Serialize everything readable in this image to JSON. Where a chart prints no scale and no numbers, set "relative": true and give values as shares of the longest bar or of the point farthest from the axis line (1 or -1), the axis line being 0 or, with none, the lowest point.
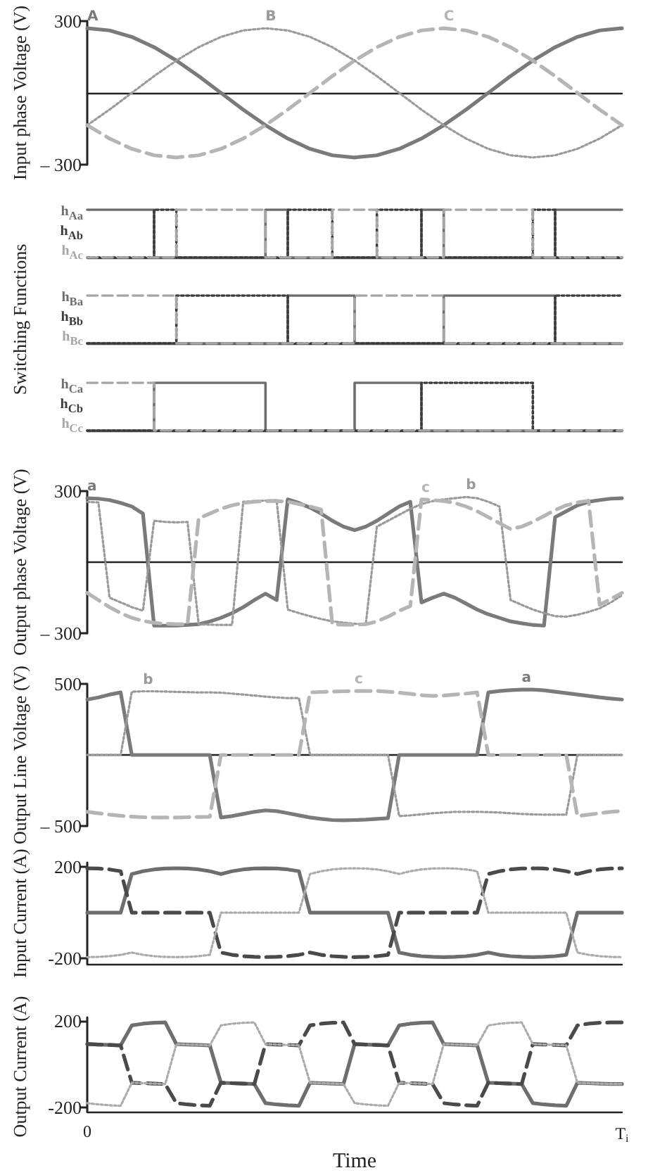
{
  "chart_data": [
    {
      "type": "line",
      "ylabel": "Input phase Voltage (V)",
      "ylim": [
        -300,
        300
      ],
      "yticks": [
        {
          "value": 300,
          "label": "300"
        },
        {
          "value": -300,
          "label": "– 300"
        }
      ],
      "tick_labels": "y",
      "marker": "none",
      "categories": [
        null,
        null,
        null,
        null,
        null,
        null,
        null,
        null,
        null,
        null,
        null,
        null,
        null,
        null,
        null,
        null,
        null,
        null,
        null,
        null,
        null,
        null,
        null,
        null,
        null
      ],
      "series": [
        {
          "name": "A",
          "color": "#7a7a7a",
          "line_style": "solid",
          "values": [
            270,
            261,
            234,
            191,
            135,
            70,
            0,
            -70,
            -135,
            -191,
            -234,
            -261,
            -270,
            -261,
            -234,
            -191,
            -135,
            -70,
            0,
            70,
            135,
            191,
            234,
            261,
            270
          ]
        },
        {
          "name": "B",
          "color": "#9a9a9a",
          "line_style": "dotted",
          "values": [
            -135,
            -70,
            0,
            70,
            135,
            191,
            234,
            261,
            270,
            261,
            234,
            191,
            135,
            70,
            0,
            -70,
            -135,
            -191,
            -234,
            -261,
            -270,
            -261,
            -234,
            -191,
            -135
          ]
        },
        {
          "name": "C",
          "color": "#b5b5b5",
          "line_style": "dashed",
          "values": [
            -135,
            -191,
            -234,
            -261,
            -270,
            -261,
            -234,
            -191,
            -135,
            -70,
            0,
            70,
            135,
            191,
            234,
            261,
            270,
            261,
            234,
            191,
            135,
            70,
            0,
            -70,
            -135
          ]
        }
      ]
    },
    {
      "type": "step",
      "relative": true,
      "tick_labels": false,
      "marker": "none",
      "categories": [
        null,
        null,
        null,
        null,
        null,
        null,
        null,
        null,
        null,
        null,
        null,
        null,
        null,
        null,
        null,
        null,
        null,
        null,
        null,
        null,
        null,
        null,
        null,
        null,
        null
      ],
      "series": [
        {
          "name": "h$_{Aa}$",
          "color": "#6e6e6e",
          "line_style": "solid",
          "values": [
            1,
            1,
            1,
            0,
            0,
            0,
            0,
            0,
            1,
            0,
            0,
            0,
            0,
            0,
            0,
            1,
            0,
            0,
            0,
            0,
            0,
            1,
            1,
            1,
            1
          ]
        },
        {
          "name": "h$_{Ab}$",
          "color": "#3c3c3c",
          "line_style": "dotted",
          "values": [
            0,
            0,
            0,
            1,
            0,
            0,
            0,
            0,
            0,
            1,
            1,
            0,
            0,
            1,
            1,
            0,
            0,
            0,
            0,
            0,
            1,
            0,
            0,
            0,
            0
          ]
        },
        {
          "name": "h$_{Ac}$",
          "color": "#a6a6a6",
          "line_style": "dashed",
          "values": [
            0,
            0,
            0,
            0,
            1,
            1,
            1,
            1,
            0,
            0,
            0,
            1,
            1,
            0,
            0,
            0,
            1,
            1,
            1,
            1,
            0,
            0,
            0,
            0,
            0
          ]
        }
      ]
    },
    {
      "type": "step",
      "relative": true,
      "ylabel": "Switching Functions",
      "tick_labels": false,
      "marker": "none",
      "categories": [
        null,
        null,
        null,
        null,
        null,
        null,
        null,
        null,
        null,
        null,
        null,
        null,
        null,
        null,
        null,
        null,
        null,
        null,
        null,
        null,
        null,
        null,
        null,
        null,
        null
      ],
      "series": [
        {
          "name": "h$_{Ba}$",
          "color": "#6e6e6e",
          "line_style": "solid",
          "values": [
            0,
            0,
            0,
            0,
            0,
            0,
            0,
            0,
            0,
            1,
            1,
            1,
            0,
            0,
            0,
            0,
            1,
            1,
            1,
            1,
            1,
            0,
            0,
            0,
            0
          ]
        },
        {
          "name": "h$_{Bb}$",
          "color": "#3c3c3c",
          "line_style": "dotted",
          "values": [
            0,
            0,
            0,
            0,
            1,
            1,
            1,
            1,
            1,
            0,
            0,
            0,
            0,
            0,
            0,
            0,
            0,
            0,
            0,
            0,
            0,
            1,
            1,
            1,
            1
          ]
        },
        {
          "name": "h$_{Bc}$",
          "color": "#a6a6a6",
          "line_style": "dashed",
          "values": [
            1,
            1,
            1,
            1,
            0,
            0,
            0,
            0,
            0,
            0,
            0,
            0,
            1,
            1,
            1,
            1,
            0,
            0,
            0,
            0,
            0,
            0,
            0,
            0,
            0
          ]
        }
      ]
    },
    {
      "type": "step",
      "relative": true,
      "tick_labels": false,
      "marker": "none",
      "categories": [
        null,
        null,
        null,
        null,
        null,
        null,
        null,
        null,
        null,
        null,
        null,
        null,
        null,
        null,
        null,
        null,
        null,
        null,
        null,
        null,
        null,
        null,
        null,
        null,
        null
      ],
      "series": [
        {
          "name": "h$_{Ca}$",
          "color": "#6e6e6e",
          "line_style": "solid",
          "values": [
            0,
            0,
            0,
            1,
            1,
            1,
            1,
            1,
            0,
            0,
            0,
            0,
            1,
            1,
            1,
            0,
            0,
            0,
            0,
            0,
            0,
            0,
            0,
            0,
            0
          ]
        },
        {
          "name": "h$_{Cb}$",
          "color": "#3c3c3c",
          "line_style": "dotted",
          "values": [
            0,
            0,
            0,
            0,
            0,
            0,
            0,
            0,
            0,
            0,
            0,
            0,
            0,
            0,
            0,
            1,
            1,
            1,
            1,
            1,
            0,
            0,
            0,
            0,
            0
          ]
        },
        {
          "name": "h$_{Cc}$",
          "color": "#a6a6a6",
          "line_style": "dashed",
          "values": [
            1,
            1,
            1,
            0,
            0,
            0,
            0,
            0,
            0,
            0,
            0,
            0,
            0,
            0,
            0,
            0,
            0,
            0,
            0,
            0,
            0,
            0,
            0,
            0,
            0
          ]
        }
      ]
    },
    {
      "type": "line",
      "ylabel": "Output phase Voltage (V)",
      "ylim": [
        -300,
        300
      ],
      "yticks": [
        {
          "value": 300,
          "label": "300"
        },
        {
          "value": -300,
          "label": "– 300"
        }
      ],
      "tick_labels": "y",
      "marker": "none",
      "categories": [
        null,
        null,
        null,
        null,
        null,
        null,
        null,
        null,
        null,
        null,
        null,
        null,
        null,
        null,
        null,
        null,
        null,
        null,
        null,
        null,
        null,
        null,
        null,
        null,
        null,
        null,
        null,
        null,
        null,
        null,
        null,
        null,
        null,
        null,
        null,
        null,
        null,
        null,
        null,
        null,
        null,
        null,
        null,
        null,
        null,
        null,
        null,
        null,
        null
      ],
      "series": [
        {
          "name": "a",
          "color": "#7a7a7a",
          "line_style": "solid",
          "values": [
            270,
            268,
            262,
            250,
            235,
            205,
            -268,
            -268,
            -268,
            -265,
            -262,
            -250,
            -235,
            -215,
            -190,
            -160,
            -133,
            -160,
            265,
            250,
            230,
            205,
            175,
            150,
            135,
            150,
            175,
            205,
            235,
            255,
            -170,
            -150,
            -133,
            -150,
            -175,
            -200,
            -220,
            -235,
            -250,
            -258,
            -265,
            -268,
            190,
            215,
            240,
            255,
            262,
            268,
            270
          ]
        },
        {
          "name": "b",
          "color": "#9a9a9a",
          "line_style": "dotted",
          "values": [
            255,
            252,
            -150,
            -170,
            -190,
            -205,
            175,
            170,
            168,
            170,
            -262,
            -264,
            -265,
            -265,
            255,
            258,
            260,
            262,
            -200,
            -215,
            -228,
            -240,
            -250,
            -255,
            -260,
            -263,
            150,
            175,
            200,
            225,
            245,
            258,
            265,
            270,
            275,
            270,
            255,
            235,
            -160,
            -180,
            -200,
            -215,
            -228,
            -230,
            -222,
            -210,
            -195,
            -170,
            -140
          ]
        },
        {
          "name": "c",
          "color": "#b5b5b5",
          "line_style": "dashed",
          "values": [
            -130,
            -160,
            -190,
            -215,
            -235,
            -248,
            -256,
            -260,
            -262,
            -262,
            185,
            205,
            225,
            240,
            250,
            255,
            258,
            258,
            255,
            245,
            235,
            222,
            -262,
            -264,
            -264,
            -262,
            -250,
            -230,
            -205,
            -185,
            265,
            262,
            258,
            250,
            235,
            215,
            190,
            165,
            140,
            150,
            170,
            195,
            220,
            240,
            252,
            260,
            -180,
            -155,
            -130
          ]
        }
      ]
    },
    {
      "type": "line",
      "ylabel": "Output Line Voltage (V)",
      "ylim": [
        -500,
        500
      ],
      "yticks": [
        {
          "value": 500,
          "label": "500"
        },
        {
          "value": -500,
          "label": "– 500"
        }
      ],
      "tick_labels": "y",
      "marker": "none",
      "categories": [
        null,
        null,
        null,
        null,
        null,
        null,
        null,
        null,
        null,
        null,
        null,
        null,
        null,
        null,
        null,
        null,
        null,
        null,
        null,
        null,
        null,
        null,
        null,
        null,
        null,
        null,
        null,
        null,
        null,
        null,
        null,
        null,
        null,
        null,
        null,
        null,
        null,
        null,
        null,
        null,
        null,
        null,
        null,
        null,
        null,
        null,
        null,
        null,
        null
      ],
      "series": [
        {
          "name": "a",
          "color": "#7a7a7a",
          "line_style": "solid",
          "values": [
            390,
            405,
            425,
            440,
            0,
            0,
            0,
            0,
            0,
            0,
            0,
            0,
            -440,
            -430,
            -415,
            -400,
            -390,
            -395,
            -410,
            -425,
            -440,
            -450,
            -458,
            -460,
            -458,
            -455,
            -450,
            -445,
            0,
            0,
            0,
            0,
            0,
            0,
            0,
            0,
            440,
            450,
            456,
            460,
            460,
            455,
            445,
            435,
            425,
            415,
            405,
            397,
            390
          ]
        },
        {
          "name": "b",
          "color": "#9a9a9a",
          "line_style": "dotted",
          "values": [
            0,
            0,
            0,
            0,
            445,
            448,
            448,
            446,
            444,
            442,
            440,
            440,
            438,
            432,
            425,
            418,
            410,
            405,
            400,
            400,
            0,
            0,
            0,
            0,
            0,
            0,
            0,
            0,
            -430,
            -425,
            -418,
            -410,
            -405,
            -400,
            -400,
            -400,
            -402,
            -405,
            -410,
            -415,
            -418,
            -420,
            -420,
            -420,
            0,
            0,
            0,
            0,
            0
          ]
        },
        {
          "name": "c",
          "color": "#b5b5b5",
          "line_style": "dashed",
          "values": [
            -400,
            -410,
            -420,
            -428,
            -434,
            -438,
            -440,
            -440,
            -440,
            -438,
            -436,
            -435,
            0,
            0,
            0,
            0,
            0,
            0,
            0,
            0,
            440,
            443,
            446,
            448,
            450,
            450,
            450,
            445,
            438,
            430,
            420,
            415,
            418,
            425,
            432,
            440,
            0,
            0,
            0,
            0,
            0,
            0,
            0,
            0,
            -430,
            -420,
            -410,
            -400,
            -395
          ]
        }
      ]
    },
    {
      "type": "line",
      "ylabel": "Input Current (A)",
      "ylim": [
        -225,
        220
      ],
      "yticks": [
        {
          "value": 200,
          "label": "200"
        },
        {
          "value": -200,
          "label": "-200"
        }
      ],
      "tick_labels": "y",
      "marker": "none",
      "categories": [
        null,
        null,
        null,
        null,
        null,
        null,
        null,
        null,
        null,
        null,
        null,
        null,
        null,
        null,
        null,
        null,
        null,
        null,
        null,
        null,
        null,
        null,
        null,
        null,
        null,
        null,
        null,
        null,
        null,
        null,
        null,
        null,
        null,
        null,
        null,
        null,
        null,
        null,
        null,
        null,
        null,
        null,
        null,
        null,
        null,
        null,
        null,
        null,
        null
      ],
      "series": [
        {
          "color": "#6e6e6e",
          "line_style": "solid",
          "values": [
            0,
            0,
            0,
            0,
            170,
            182,
            190,
            194,
            195,
            194,
            190,
            182,
            170,
            182,
            190,
            194,
            195,
            194,
            190,
            182,
            0,
            0,
            0,
            0,
            0,
            0,
            0,
            0,
            -175,
            -185,
            -191,
            -194,
            -195,
            -194,
            -191,
            -185,
            -175,
            -185,
            -191,
            -194,
            -195,
            -194,
            -191,
            -185,
            0,
            0,
            0,
            0,
            0
          ]
        },
        {
          "color": "#4a4a4a",
          "line_style": "dashed",
          "values": [
            195,
            194,
            190,
            182,
            0,
            0,
            0,
            0,
            0,
            0,
            0,
            0,
            -175,
            -185,
            -191,
            -194,
            -195,
            -194,
            -191,
            -185,
            -175,
            -185,
            -191,
            -194,
            -195,
            -194,
            -191,
            -185,
            0,
            0,
            0,
            0,
            0,
            0,
            0,
            0,
            170,
            182,
            190,
            194,
            195,
            194,
            190,
            182,
            170,
            182,
            190,
            194,
            195
          ]
        },
        {
          "color": "#ababab",
          "line_style": "dotted",
          "values": [
            -195,
            -194,
            -191,
            -185,
            -175,
            -185,
            -191,
            -194,
            -195,
            -194,
            -191,
            -185,
            0,
            0,
            0,
            0,
            0,
            0,
            0,
            0,
            170,
            182,
            190,
            194,
            195,
            194,
            190,
            182,
            170,
            182,
            190,
            194,
            195,
            194,
            190,
            182,
            0,
            0,
            0,
            0,
            0,
            0,
            0,
            0,
            -175,
            -185,
            -191,
            -194,
            -195
          ]
        }
      ]
    },
    {
      "type": "line",
      "ylabel": "Output Current (A)",
      "xlabel": "Time",
      "ylim": [
        -220,
        215
      ],
      "yticks": [
        {
          "value": 200,
          "label": "200"
        },
        {
          "value": -200,
          "label": "-200"
        }
      ],
      "marker": "none",
      "categories": [
        "0",
        null,
        null,
        null,
        null,
        null,
        null,
        null,
        null,
        null,
        null,
        null,
        null,
        null,
        null,
        null,
        null,
        null,
        null,
        null,
        null,
        null,
        null,
        null,
        null,
        null,
        null,
        null,
        null,
        null,
        null,
        null,
        null,
        null,
        null,
        null,
        null,
        null,
        null,
        null,
        null,
        null,
        null,
        null,
        null,
        null,
        null,
        null,
        "T$_{i}$"
      ],
      "series": [
        {
          "color": "#6e6e6e",
          "line_style": "solid",
          "values": [
            92,
            90,
            88,
            86,
            178,
            186,
            190,
            192,
            92,
            90,
            88,
            86,
            -86,
            -88,
            -90,
            -92,
            -180,
            -186,
            -190,
            -192,
            -86,
            -88,
            -90,
            -92,
            92,
            90,
            88,
            86,
            178,
            186,
            190,
            192,
            92,
            90,
            88,
            86,
            -86,
            -88,
            -90,
            -92,
            -180,
            -186,
            -190,
            -192,
            -86,
            -88,
            -90,
            -92,
            -92
          ]
        },
        {
          "color": "#4a4a4a",
          "line_style": "dashed",
          "values": [
            92,
            90,
            88,
            86,
            -86,
            -88,
            -90,
            -92,
            -180,
            -186,
            -190,
            -192,
            -86,
            -88,
            -90,
            -92,
            92,
            90,
            88,
            86,
            178,
            186,
            190,
            192,
            92,
            90,
            88,
            86,
            -86,
            -88,
            -90,
            -92,
            -180,
            -186,
            -190,
            -192,
            -86,
            -88,
            -90,
            -92,
            92,
            90,
            88,
            86,
            178,
            186,
            190,
            192,
            192
          ]
        },
        {
          "color": "#ababab",
          "line_style": "dotted",
          "values": [
            -180,
            -186,
            -190,
            -192,
            -86,
            -88,
            -90,
            -92,
            92,
            90,
            88,
            86,
            178,
            186,
            190,
            192,
            92,
            90,
            88,
            86,
            -86,
            -88,
            -90,
            -92,
            -180,
            -186,
            -190,
            -192,
            -86,
            -88,
            -90,
            -92,
            92,
            90,
            88,
            86,
            178,
            186,
            190,
            192,
            92,
            90,
            88,
            86,
            -86,
            -88,
            -90,
            -92,
            -92
          ]
        }
      ]
    }
  ]
}
